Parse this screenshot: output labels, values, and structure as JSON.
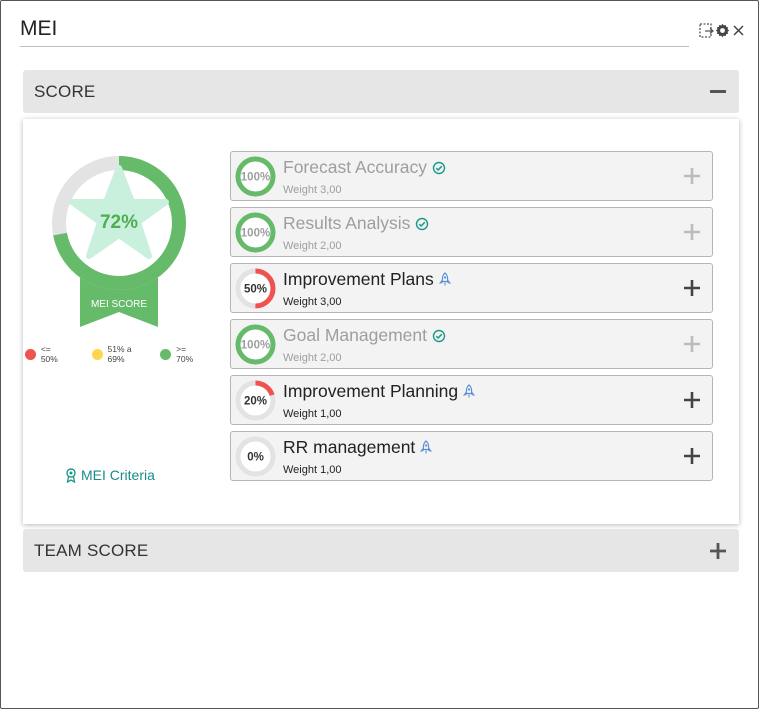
{
  "window": {
    "title": "MEI"
  },
  "score_panel": {
    "label": "SCORE",
    "overall": {
      "percent_text": "72%",
      "value": 72,
      "badge_label": "MEI SCORE"
    },
    "legend": [
      {
        "label": "<= 50%",
        "color": "#ef5350"
      },
      {
        "label": "51% a 69%",
        "color": "#ffd54f"
      },
      {
        "label": ">= 70%",
        "color": "#66bb6a"
      }
    ],
    "criteria_link": "MEI Criteria",
    "criteria": [
      {
        "name": "Forecast Accuracy",
        "weight": "Weight 3,00",
        "percent_text": "100%",
        "value": 100,
        "status": "done",
        "status_icon": "check-badge-icon"
      },
      {
        "name": "Results Analysis",
        "weight": "Weight 2,00",
        "percent_text": "100%",
        "value": 100,
        "status": "done",
        "status_icon": "check-badge-icon"
      },
      {
        "name": "Improvement Plans",
        "weight": "Weight 3,00",
        "percent_text": "50%",
        "value": 50,
        "status": "todo",
        "status_icon": "rocket-icon"
      },
      {
        "name": "Goal Management",
        "weight": "Weight 2,00",
        "percent_text": "100%",
        "value": 100,
        "status": "done",
        "status_icon": "check-badge-icon"
      },
      {
        "name": "Improvement Planning",
        "weight": "Weight 1,00",
        "percent_text": "20%",
        "value": 20,
        "status": "todo",
        "status_icon": "rocket-icon"
      },
      {
        "name": "RR management",
        "weight": "Weight 1,00",
        "percent_text": "0%",
        "value": 0,
        "status": "todo",
        "status_icon": "rocket-icon"
      }
    ]
  },
  "team_panel": {
    "label": "TEAM SCORE"
  },
  "colors": {
    "green": "#66bb6a",
    "red": "#ef5350",
    "teal": "#1a9a8a",
    "track": "#e3e3e3",
    "star_fill": "#c9f0dd",
    "rocket": "#5b8fd6"
  }
}
